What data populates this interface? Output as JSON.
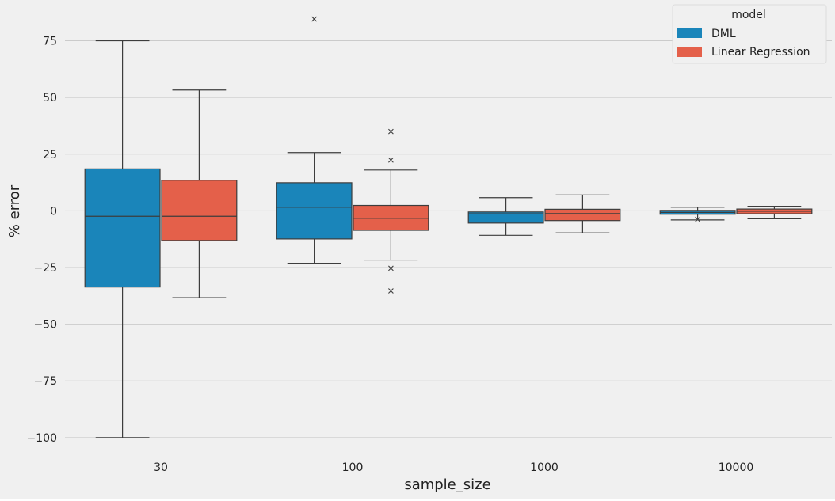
{
  "chart_data": {
    "type": "box",
    "title": "",
    "xlabel": "sample_size",
    "ylabel": "% error",
    "categories": [
      "30",
      "100",
      "1000",
      "10000"
    ],
    "ylim": [
      -106,
      93
    ],
    "yticks": [
      75,
      50,
      25,
      0,
      -25,
      -50,
      -75,
      -100
    ],
    "ytick_labels": [
      "75",
      "50",
      "25",
      "0",
      "−25",
      "−50",
      "−75",
      "−100"
    ],
    "grid": "horizontal",
    "background": "#f0f0f0",
    "legend": {
      "title": "model",
      "placement": "top-right"
    },
    "series": [
      {
        "name": "DML",
        "color": "#1a85ba",
        "boxes": [
          {
            "whislo": -100,
            "q1": -33.6,
            "med": -2.4,
            "q3": 18.5,
            "whishi": 75,
            "fliers": []
          },
          {
            "whislo": -23.1,
            "q1": -12.4,
            "med": 1.6,
            "q3": 12.4,
            "whishi": 25.7,
            "fliers": [
              84.6
            ]
          },
          {
            "whislo": -10.8,
            "q1": -5.4,
            "med": -1.3,
            "q3": -0.5,
            "whishi": 5.8,
            "fliers": []
          },
          {
            "whislo": -4.0,
            "q1": -1.5,
            "med": -0.7,
            "q3": 0.2,
            "whishi": 1.6,
            "fliers": [
              -3.8
            ]
          }
        ]
      },
      {
        "name": "Linear Regression",
        "color": "#e4604a",
        "boxes": [
          {
            "whislo": -38.3,
            "q1": -13.1,
            "med": -2.4,
            "q3": 13.5,
            "whishi": 53.3,
            "fliers": []
          },
          {
            "whislo": -21.7,
            "q1": -8.6,
            "med": -3.3,
            "q3": 2.4,
            "whishi": 18.0,
            "fliers": [
              35.0,
              22.4,
              -25.3,
              -35.3
            ]
          },
          {
            "whislo": -9.7,
            "q1": -4.3,
            "med": -1.2,
            "q3": 0.7,
            "whishi": 7.0,
            "fliers": []
          },
          {
            "whislo": -3.5,
            "q1": -1.3,
            "med": -0.2,
            "q3": 0.8,
            "whishi": 2.0,
            "fliers": []
          }
        ]
      }
    ]
  }
}
